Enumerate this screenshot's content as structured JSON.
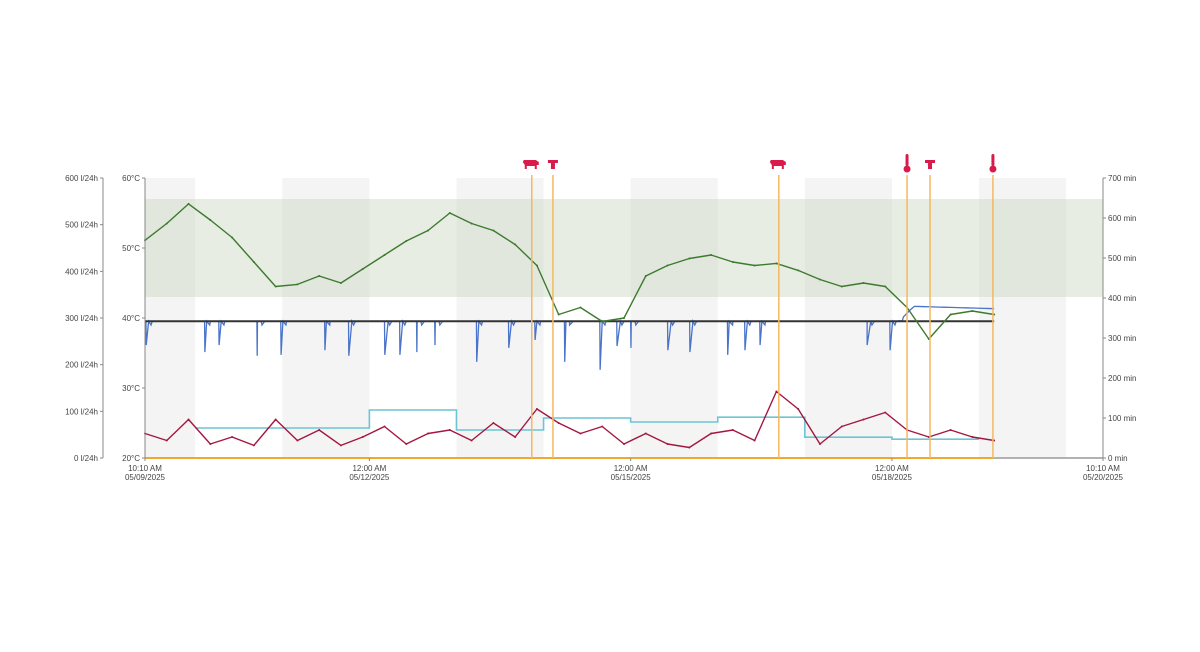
{
  "chart_data": {
    "type": "line",
    "x_range": [
      "05/09 10:10",
      "05/20 10:10"
    ],
    "x_ticks": [
      {
        "t": "05/09 10:10",
        "line1": "10:10 AM",
        "line2": "05/09/2025"
      },
      {
        "t": "05/12 00:00",
        "line1": "12:00 AM",
        "line2": "05/12/2025"
      },
      {
        "t": "05/15 00:00",
        "line1": "12:00 AM",
        "line2": "05/15/2025"
      },
      {
        "t": "05/18 00:00",
        "line1": "12:00 AM",
        "line2": "05/18/2025"
      },
      {
        "t": "05/20 10:10",
        "line1": "10:10 AM",
        "line2": "05/20/2025"
      }
    ],
    "axes": {
      "flow": {
        "unit": "l/24h",
        "ylim": [
          0,
          600
        ],
        "ticks": [
          "0 l/24h",
          "100 l/24h",
          "200 l/24h",
          "300 l/24h",
          "400 l/24h",
          "500 l/24h",
          "600 l/24h"
        ]
      },
      "temperature": {
        "unit": "°C",
        "ylim": [
          20,
          60
        ],
        "ticks": [
          "20°C",
          "30°C",
          "40°C",
          "50°C",
          "60°C"
        ]
      },
      "minutes": {
        "unit": "min",
        "ylim": [
          0,
          700
        ],
        "ticks": [
          "0 min",
          "100 min",
          "200 min",
          "300 min",
          "400 min",
          "500 min",
          "600 min",
          "700 min"
        ]
      }
    },
    "shaded_days": [
      [
        "05/09 10:10",
        "05/10 00:00"
      ],
      [
        "05/11 00:00",
        "05/12 00:00"
      ],
      [
        "05/13 00:00",
        "05/14 00:00"
      ],
      [
        "05/15 00:00",
        "05/16 00:00"
      ],
      [
        "05/17 00:00",
        "05/18 00:00"
      ],
      [
        "05/19 00:00",
        "05/20 00:00"
      ]
    ],
    "target_band_temperature": [
      43,
      57
    ],
    "sample_times": [
      "05/09 10:10",
      "05/09 16:10",
      "05/09 22:10",
      "05/10 04:10",
      "05/10 10:10",
      "05/10 16:10",
      "05/10 22:10",
      "05/11 04:10",
      "05/11 10:10",
      "05/11 16:10",
      "05/11 22:10",
      "05/12 04:10",
      "05/12 10:10",
      "05/12 16:10",
      "05/12 22:10",
      "05/13 04:10",
      "05/13 10:10",
      "05/13 16:10",
      "05/13 22:10",
      "05/14 04:10",
      "05/14 10:10",
      "05/14 16:10",
      "05/14 22:10",
      "05/15 04:10",
      "05/15 10:10",
      "05/15 16:10",
      "05/15 22:10",
      "05/16 04:10",
      "05/16 10:10",
      "05/16 16:10",
      "05/16 22:10",
      "05/17 04:10",
      "05/17 10:10",
      "05/17 16:10",
      "05/17 22:10",
      "05/18 04:10",
      "05/18 10:10",
      "05/18 16:10",
      "05/18 22:10",
      "05/19 04:10"
    ],
    "series": [
      {
        "axis": "temperature",
        "color": "#3d7a2e",
        "values": [
          51.1,
          53.5,
          56.3,
          54.0,
          51.5,
          48,
          44.5,
          44.8,
          46,
          45,
          47,
          49,
          51,
          52.5,
          55,
          53.5,
          52.5,
          50.5,
          47.5,
          40.5,
          41.5,
          39.5,
          40,
          46,
          47.5,
          48.5,
          49,
          48,
          47.5,
          47.8,
          46.8,
          45.5,
          44.5,
          45,
          44.5,
          41.5,
          37,
          40.5,
          41,
          40.5
        ]
      },
      {
        "axis": "temperature",
        "color": "#a3173f",
        "values": [
          23.5,
          22.5,
          25.5,
          22,
          23,
          21.8,
          25.5,
          22.5,
          24,
          21.8,
          23,
          24.5,
          22,
          23.5,
          24,
          22.5,
          25,
          23,
          27,
          25,
          23.5,
          24.5,
          22,
          23.5,
          22,
          21.5,
          23.5,
          24,
          22.5,
          29.5,
          27,
          22,
          24.5,
          25.5,
          26.5,
          24,
          23,
          24,
          23,
          22.5
        ]
      }
    ],
    "flow_series": {
      "axis": "flow",
      "color": "#4a74c9",
      "baseline": [
        [
          "05/09 10:10",
          293
        ],
        [
          "05/18 02:00",
          293
        ],
        [
          "05/18 06:00",
          325
        ],
        [
          "05/19 04:10",
          320
        ]
      ],
      "dips": [
        [
          "05/09 10:30",
          242
        ],
        [
          "05/10 02:40",
          227
        ],
        [
          "05/10 06:35",
          242
        ],
        [
          "05/10 17:05",
          219
        ],
        [
          "05/10 23:40",
          221
        ],
        [
          "05/11 11:45",
          231
        ],
        [
          "05/11 18:20",
          219
        ],
        [
          "05/12 04:15",
          221
        ],
        [
          "05/12 08:25",
          221
        ],
        [
          "05/12 13:05",
          227
        ],
        [
          "05/12 18:05",
          242
        ],
        [
          "05/13 05:35",
          206
        ],
        [
          "05/13 14:25",
          236
        ],
        [
          "05/13 21:40",
          253
        ],
        [
          "05/14 05:50",
          206
        ],
        [
          "05/14 15:35",
          189
        ],
        [
          "05/14 20:15",
          240
        ],
        [
          "05/15 00:05",
          236
        ],
        [
          "05/15 10:15",
          231
        ],
        [
          "05/15 16:20",
          227
        ],
        [
          "05/16 02:45",
          221
        ],
        [
          "05/16 07:30",
          231
        ],
        [
          "05/16 11:40",
          242
        ],
        [
          "05/17 17:10",
          242
        ],
        [
          "05/17 23:30",
          231
        ]
      ]
    },
    "reference_line": {
      "axis": "flow",
      "color": "#333333",
      "value": 293,
      "range": [
        "05/09 10:10",
        "05/19 04:10"
      ]
    },
    "daily_steps": {
      "axis": "minutes",
      "color": "#6cc4d4",
      "steps": [
        [
          "05/10 00:00",
          75
        ],
        [
          "05/11 00:00",
          75
        ],
        [
          "05/12 00:00",
          120
        ],
        [
          "05/13 00:00",
          70
        ],
        [
          "05/14 00:00",
          100
        ],
        [
          "05/15 00:00",
          90
        ],
        [
          "05/16 00:00",
          102
        ],
        [
          "05/17 00:00",
          52
        ],
        [
          "05/18 00:00",
          47
        ]
      ],
      "end": "05/19 00:00"
    },
    "baseline_line": {
      "axis": "minutes",
      "color": "#f0a830",
      "value": 0
    },
    "events": [
      {
        "t": "05/13 20:45",
        "icon": "cow-icon"
      },
      {
        "t": "05/14 02:35",
        "icon": "treatment-icon"
      },
      {
        "t": "05/16 16:50",
        "icon": "cow-icon"
      },
      {
        "t": "05/18 04:10",
        "icon": "thermometer-icon"
      },
      {
        "t": "05/18 10:30",
        "icon": "treatment-icon"
      },
      {
        "t": "05/19 03:50",
        "icon": "thermometer-icon"
      }
    ],
    "event_color": "#f5b860",
    "icon_color": "#d81b4a"
  }
}
